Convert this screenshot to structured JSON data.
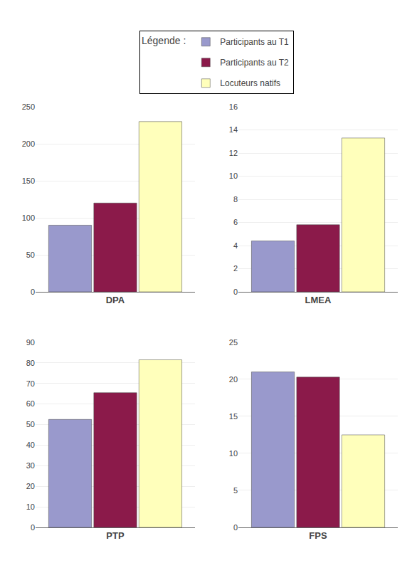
{
  "chart_data": [
    {
      "type": "bar",
      "xlabel": "DPA",
      "categories": [
        null
      ],
      "series": [
        {
          "name": "Participants au T1",
          "color": "#9999cc",
          "values": [
            90
          ]
        },
        {
          "name": "Participants au T2",
          "color": "#8b1a4a",
          "values": [
            120
          ]
        },
        {
          "name": "Locuteurs natifs",
          "color": "#ffffbb",
          "values": [
            230
          ]
        }
      ],
      "ylim": [
        0,
        250
      ],
      "yticks": [
        0,
        50,
        100,
        150,
        200,
        250
      ],
      "grid": true,
      "tick_labels": "y"
    },
    {
      "type": "bar",
      "xlabel": "LMEA",
      "categories": [
        null
      ],
      "series": [
        {
          "name": "Participants au T1",
          "color": "#9999cc",
          "values": [
            4.4
          ]
        },
        {
          "name": "Participants au T2",
          "color": "#8b1a4a",
          "values": [
            5.8
          ]
        },
        {
          "name": "Locuteurs natifs",
          "color": "#ffffbb",
          "values": [
            13.3
          ]
        }
      ],
      "ylim": [
        0,
        16
      ],
      "yticks": [
        0,
        2,
        4,
        6,
        8,
        10,
        12,
        14,
        16
      ],
      "grid": true,
      "tick_labels": "y"
    },
    {
      "type": "bar",
      "xlabel": "PTP",
      "categories": [
        null
      ],
      "series": [
        {
          "name": "Participants au T1",
          "color": "#9999cc",
          "values": [
            52.5
          ]
        },
        {
          "name": "Participants au T2",
          "color": "#8b1a4a",
          "values": [
            65.5
          ]
        },
        {
          "name": "Locuteurs natifs",
          "color": "#ffffbb",
          "values": [
            81.5
          ]
        }
      ],
      "ylim": [
        0,
        90
      ],
      "yticks": [
        0,
        10,
        20,
        30,
        40,
        50,
        60,
        70,
        80,
        90
      ],
      "grid": true,
      "tick_labels": "y"
    },
    {
      "type": "bar",
      "xlabel": "FPS",
      "categories": [
        null
      ],
      "series": [
        {
          "name": "Participants au T1",
          "color": "#9999cc",
          "values": [
            21.0
          ]
        },
        {
          "name": "Participants au T2",
          "color": "#8b1a4a",
          "values": [
            20.3
          ]
        },
        {
          "name": "Locuteurs natifs",
          "color": "#ffffbb",
          "values": [
            12.5
          ]
        }
      ],
      "ylim": [
        0,
        25
      ],
      "yticks": [
        0,
        5,
        10,
        15,
        20,
        25
      ],
      "grid": true,
      "tick_labels": "y"
    }
  ],
  "legend": "top",
  "legend_title": "Légende :"
}
